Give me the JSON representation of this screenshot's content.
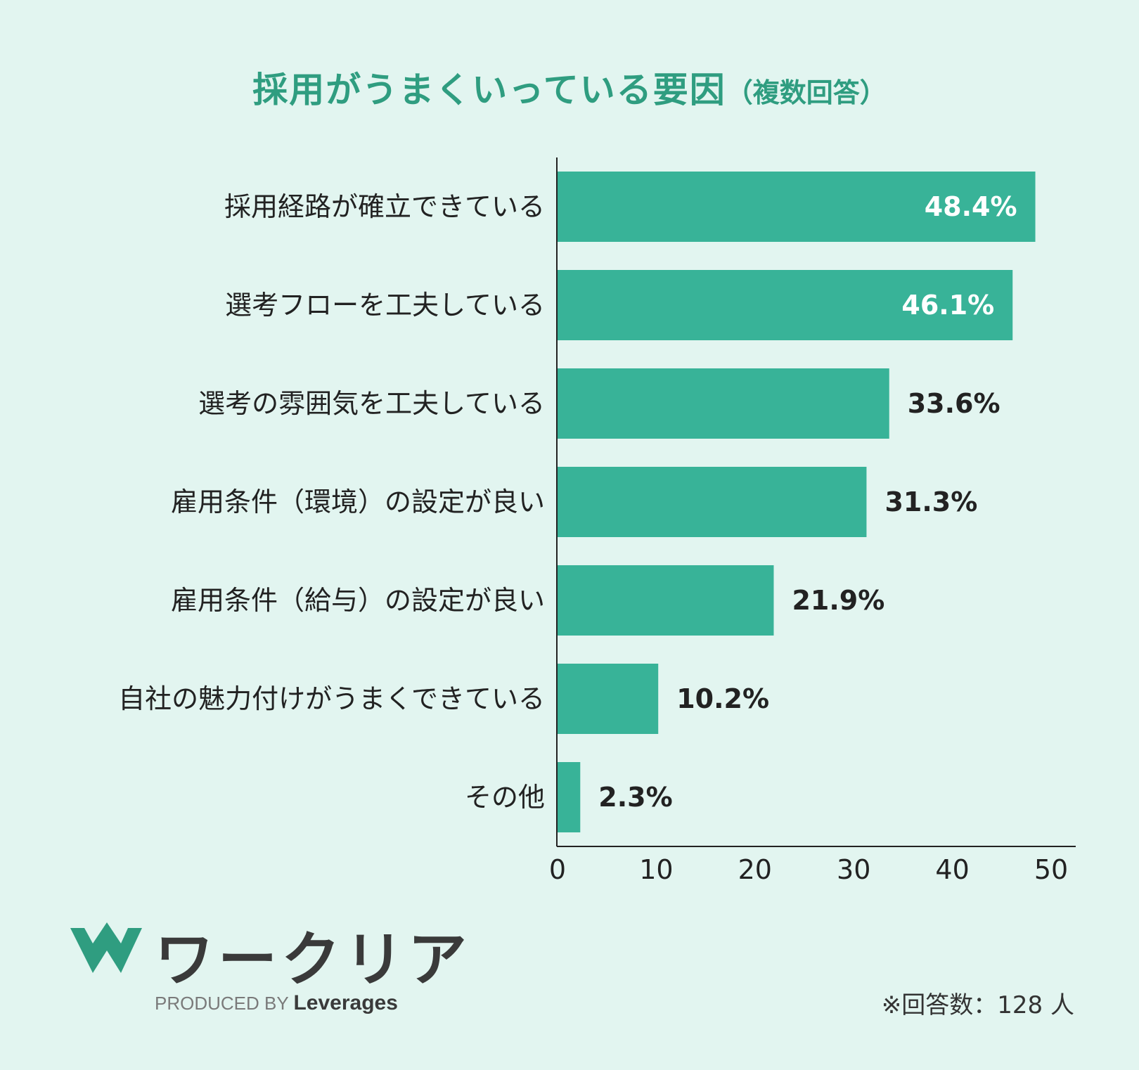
{
  "title": {
    "main": "採用がうまくいっている要因",
    "sub": "（複数回答）"
  },
  "chart_data": {
    "type": "bar",
    "orientation": "horizontal",
    "title": "採用がうまくいっている要因（複数回答）",
    "categories": [
      "採用経路が確立できている",
      "選考フローを工夫している",
      "選考の雰囲気を工夫している",
      "雇用条件（環境）の設定が良い",
      "雇用条件（給与）の設定が良い",
      "自社の魅力付けがうまくできている",
      "その他"
    ],
    "values": [
      48.4,
      46.1,
      33.6,
      31.3,
      21.9,
      10.2,
      2.3
    ],
    "value_labels": [
      "48.4%",
      "46.1%",
      "33.6%",
      "31.3%",
      "21.9%",
      "10.2%",
      "2.3%"
    ],
    "xlim": [
      0,
      50
    ],
    "xticks": [
      0,
      10,
      20,
      30,
      40,
      50
    ],
    "xlabel": "",
    "ylabel": "",
    "grid": false,
    "bar_color": "#38b398"
  },
  "footer": {
    "logo_text": "ワークリア",
    "produced_by": "PRODUCED BY",
    "brand": "Leverages",
    "note": "※回答数：128 人"
  }
}
